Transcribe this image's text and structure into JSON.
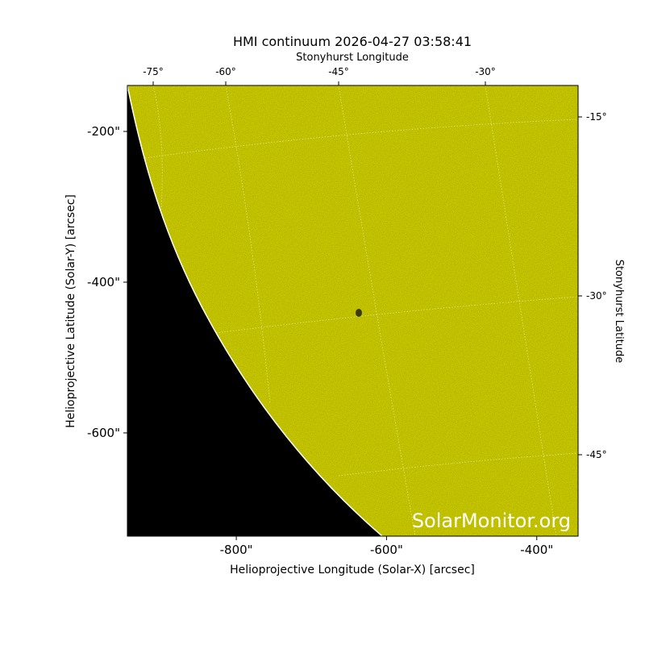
{
  "chart_data": {
    "type": "image",
    "title": "HMI continuum 2026-04-27 03:58:41",
    "xlabel": "Helioprojective Longitude (Solar-X) [arcsec]",
    "ylabel": "Helioprojective Latitude (Solar-Y) [arcsec]",
    "top_label": "Stonyhurst Longitude",
    "right_label": "Stonyhurst Latitude",
    "xlim": [
      -945,
      -345
    ],
    "ylim": [
      -737,
      -139
    ],
    "xticks": [
      {
        "value": -800,
        "label": "-800\""
      },
      {
        "value": -600,
        "label": "-600\""
      },
      {
        "value": -400,
        "label": "-400\""
      }
    ],
    "yticks": [
      {
        "value": -200,
        "label": "-200\""
      },
      {
        "value": -400,
        "label": "-400\""
      },
      {
        "value": -600,
        "label": "-600\""
      }
    ],
    "top_ticks": [
      "-75°",
      "-60°",
      "-45°",
      "-30°"
    ],
    "right_ticks": [
      "-15°",
      "-30°",
      "-45°"
    ],
    "color": "#c8c800",
    "watermark": "SolarMonitor.org"
  }
}
